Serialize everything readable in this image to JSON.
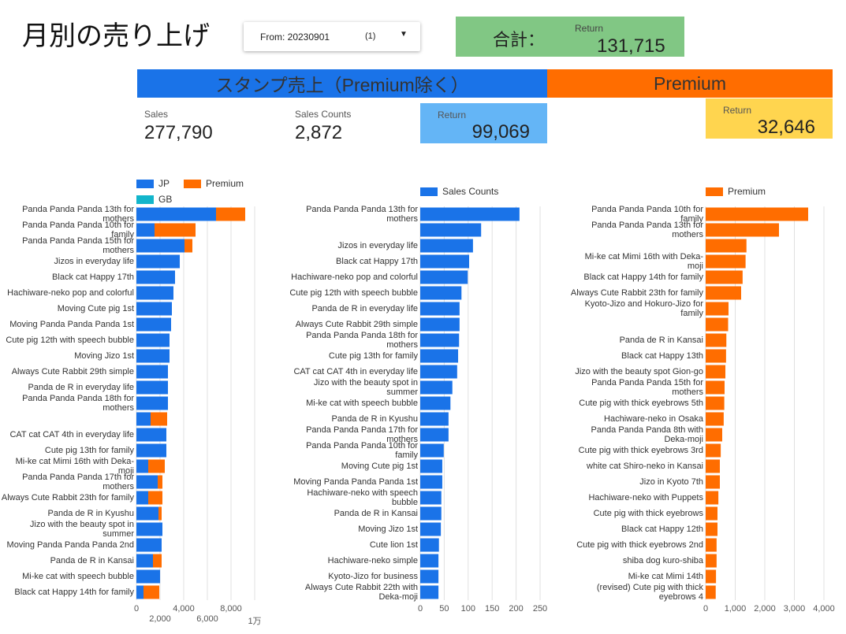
{
  "header": {
    "title": "月別の売り上げ",
    "date_filter": {
      "label": "From: 20230901",
      "count": "(1)"
    },
    "total": {
      "label": "合計：",
      "sublabel": "Return",
      "value": "131,715"
    }
  },
  "sections": [
    "スタンプ売上（Premium除く）",
    "Premium"
  ],
  "scorecards": [
    {
      "label": "Sales",
      "value": "277,790"
    },
    {
      "label": "Sales Counts",
      "value": "2,872"
    },
    {
      "label": "Return",
      "value": "99,069"
    },
    {
      "label": "Return",
      "value": "32,646"
    }
  ],
  "chart_data": [
    {
      "type": "bar",
      "orientation": "horizontal",
      "stacked": true,
      "grid": true,
      "categories": [
        "Panda Panda Panda 13th for mothers",
        "Panda Panda Panda 10th for family",
        "Panda Panda Panda 15th for mothers",
        "Jizos in everyday life",
        "Black cat Happy 17th",
        "Hachiware-neko pop and colorful",
        "Moving Cute pig 1st",
        "Moving Panda Panda Panda 1st",
        "Cute pig 12th with speech bubble",
        "Moving Jizo 1st",
        "Always Cute Rabbit 29th simple",
        "Panda de R in everyday life",
        "Panda Panda Panda 18th for mothers",
        null,
        "CAT cat CAT 4th in everyday life",
        "Cute pig 13th for family",
        "Mi-ke cat Mimi 16th with Deka-moji",
        "Panda Panda Panda 17th for mothers",
        "Always Cute Rabbit 23th for family",
        "Panda de R in Kyushu",
        "Jizo with the beauty spot in summer",
        "Moving Panda Panda Panda 2nd",
        "Panda de R in Kansai",
        "Mi-ke cat with speech bubble",
        "Black cat Happy 14th for family"
      ],
      "series": [
        {
          "name": "JP",
          "color": "#1a73e8",
          "values": [
            6733,
            1533,
            4067,
            3667,
            3267,
            3133,
            3000,
            2933,
            2800,
            2800,
            2667,
            2667,
            2667,
            1200,
            2533,
            2533,
            1000,
            1800,
            1000,
            1867,
            2200,
            2133,
            1400,
            2000,
            600
          ]
        },
        {
          "name": "Premium",
          "color": "#ff6d00",
          "values": [
            2467,
            3467,
            667,
            null,
            null,
            null,
            null,
            null,
            null,
            null,
            null,
            null,
            null,
            1400,
            null,
            null,
            1400,
            400,
            1200,
            267,
            null,
            null,
            733,
            null,
            1333
          ]
        },
        {
          "name": "GB",
          "color": "#12b5cb",
          "values": [
            0,
            0,
            0,
            0,
            0,
            0,
            0,
            0,
            0,
            0,
            0,
            0,
            0,
            0,
            0,
            0,
            0,
            0,
            0,
            0,
            0,
            0,
            0,
            0,
            0
          ]
        }
      ],
      "xlim": [
        0,
        10000
      ],
      "xticks": [
        0,
        {
          "value": 2000,
          "label": "2,000"
        },
        {
          "value": 4000,
          "label": "4,000"
        },
        {
          "value": 6000,
          "label": "6,000"
        },
        {
          "value": 8000,
          "label": "8,000"
        },
        {
          "value": 10000,
          "label": "1万"
        }
      ]
    },
    {
      "type": "bar",
      "orientation": "horizontal",
      "stacked": false,
      "grid": true,
      "categories": [
        "Panda Panda Panda 13th for mothers",
        null,
        "Jizos in everyday life",
        "Black cat Happy 17th",
        "Hachiware-neko pop and colorful",
        "Cute pig 12th with speech bubble",
        "Panda de R in everyday life",
        "Always Cute Rabbit 29th simple",
        "Panda Panda Panda 18th for mothers",
        "Cute pig 13th for family",
        "CAT cat CAT 4th in everyday life",
        "Jizo with the beauty spot in summer",
        "Mi-ke cat with speech bubble",
        "Panda de R in Kyushu",
        "Panda Panda Panda 17th for mothers",
        "Panda Panda Panda 10th for family",
        "Moving Cute pig 1st",
        "Moving Panda Panda Panda 1st",
        "Hachiware-neko with speech bubble",
        "Panda de R in Kansai",
        "Moving Jizo 1st",
        "Cute lion 1st",
        "Hachiware-neko simple",
        "Kyoto-Jizo for business",
        "Always Cute Rabbit 22th with Deka-moji"
      ],
      "series": [
        {
          "name": "Sales Counts",
          "color": "#1a73e8",
          "values": [
            207,
            127,
            110,
            102,
            99,
            86,
            82,
            82,
            81,
            79,
            77,
            67,
            63,
            59,
            59,
            49,
            46,
            46,
            44,
            44,
            43,
            39,
            38,
            38,
            38
          ]
        }
      ],
      "xlim": [
        0,
        250
      ],
      "xticks": [
        0,
        50,
        100,
        150,
        200,
        250
      ]
    },
    {
      "type": "bar",
      "orientation": "horizontal",
      "stacked": false,
      "grid": true,
      "categories": [
        "Panda Panda Panda 10th for family",
        "Panda Panda Panda 13th for mothers",
        null,
        "Mi-ke cat Mimi 16th with Deka-moji",
        "Black cat Happy 14th for family",
        "Always Cute Rabbit 23th for family",
        "Kyoto-Jizo and Hokuro-Jizo for family",
        null,
        "Panda de R in Kansai",
        "Black cat Happy 13th",
        "Jizo with the beauty spot Gion-go",
        "Panda Panda Panda 15th for mothers",
        "Cute pig with thick eyebrows 5th",
        "Hachiware-neko in Osaka",
        "Panda Panda Panda 8th with Deka-moji",
        "Cute pig with thick eyebrows 3rd",
        "white cat Shiro-neko in Kansai",
        "Jizo in Kyoto 7th",
        "Hachiware-neko with Puppets",
        "Cute pig with thick eyebrows",
        "Black cat Happy 12th",
        "Cute pig with thick eyebrows 2nd",
        "shiba dog kuro-shiba",
        "Mi-ke cat Mimi 14th",
        "(revised) Cute pig with thick eyebrows 4"
      ],
      "series": [
        {
          "name": "Premium",
          "color": "#ff6d00",
          "values": [
            3467,
            2480,
            1380,
            1350,
            1250,
            1200,
            773,
            760,
            700,
            690,
            667,
            640,
            630,
            610,
            560,
            510,
            480,
            480,
            430,
            400,
            400,
            370,
            370,
            350,
            340
          ]
        }
      ],
      "xlim": [
        0,
        4000
      ],
      "xticks": [
        0,
        {
          "value": 1000,
          "label": "1,000"
        },
        {
          "value": 2000,
          "label": "2,000"
        },
        {
          "value": 3000,
          "label": "3,000"
        },
        {
          "value": 4000,
          "label": "4,000"
        }
      ]
    }
  ]
}
